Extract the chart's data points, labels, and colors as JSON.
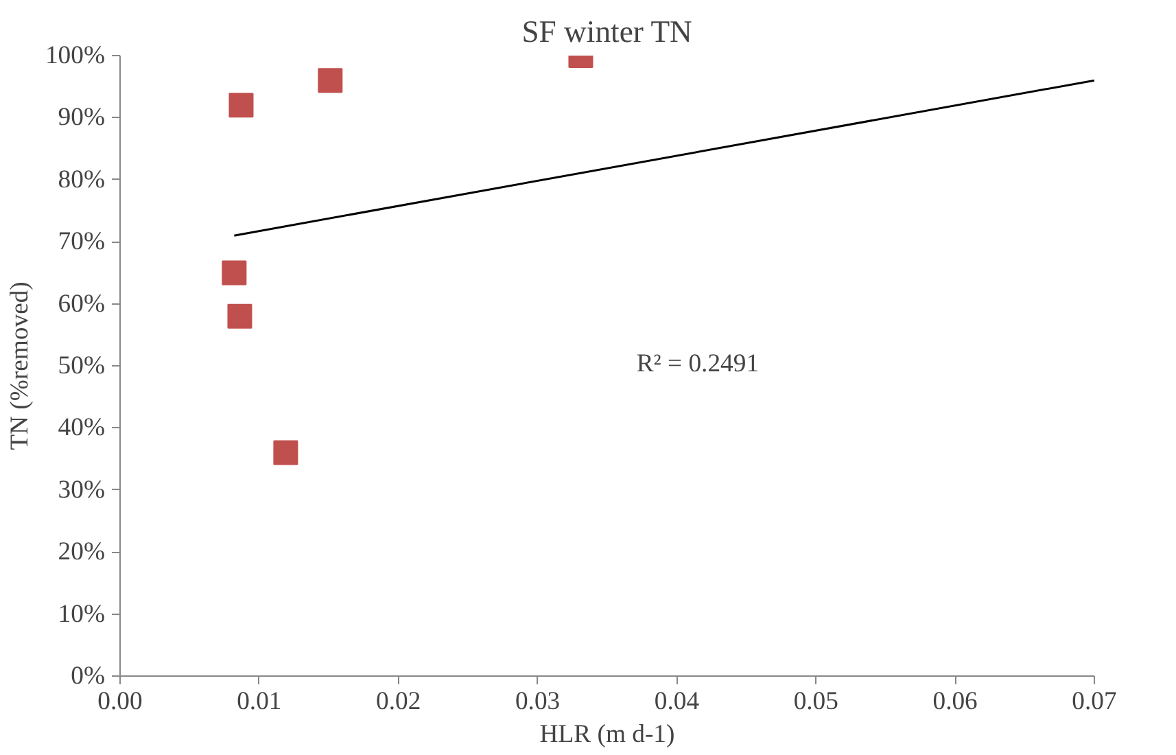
{
  "chart_data": {
    "type": "scatter",
    "title": "SF winter TN",
    "xlabel": "HLR (m d-1)",
    "ylabel": "TN (%removed)",
    "xlim": [
      0,
      0.07
    ],
    "ylim": [
      0,
      100
    ],
    "xticks": [
      {
        "value": 0,
        "label": "0.00"
      },
      {
        "value": 0.01,
        "label": "0.01"
      },
      {
        "value": 0.02,
        "label": "0.02"
      },
      {
        "value": 0.03,
        "label": "0.03"
      },
      {
        "value": 0.04,
        "label": "0.04"
      },
      {
        "value": 0.05,
        "label": "0.05"
      },
      {
        "value": 0.06,
        "label": "0.06"
      },
      {
        "value": 0.07,
        "label": "0.07"
      }
    ],
    "yticks": [
      {
        "value": 0,
        "label": "0%"
      },
      {
        "value": 10,
        "label": "10%"
      },
      {
        "value": 20,
        "label": "20%"
      },
      {
        "value": 30,
        "label": "30%"
      },
      {
        "value": 40,
        "label": "40%"
      },
      {
        "value": 50,
        "label": "50%"
      },
      {
        "value": 60,
        "label": "60%"
      },
      {
        "value": 70,
        "label": "70%"
      },
      {
        "value": 80,
        "label": "80%"
      },
      {
        "value": 90,
        "label": "90%"
      },
      {
        "value": 100,
        "label": "100%"
      }
    ],
    "series": [
      {
        "color": "#c0504d",
        "marker": "square",
        "x": [
          0.0087,
          0.0151,
          0.0331,
          0.0082,
          0.0086,
          0.0119
        ],
        "values": [
          92,
          96,
          100,
          65,
          58,
          36
        ]
      },
      {
        "type": "line",
        "color": "#000000",
        "line_style": "solid",
        "x": [
          0.0082,
          0.07
        ],
        "values": [
          71,
          96
        ]
      }
    ],
    "annotations": [
      "R² = 0.2491"
    ],
    "grid": false
  }
}
